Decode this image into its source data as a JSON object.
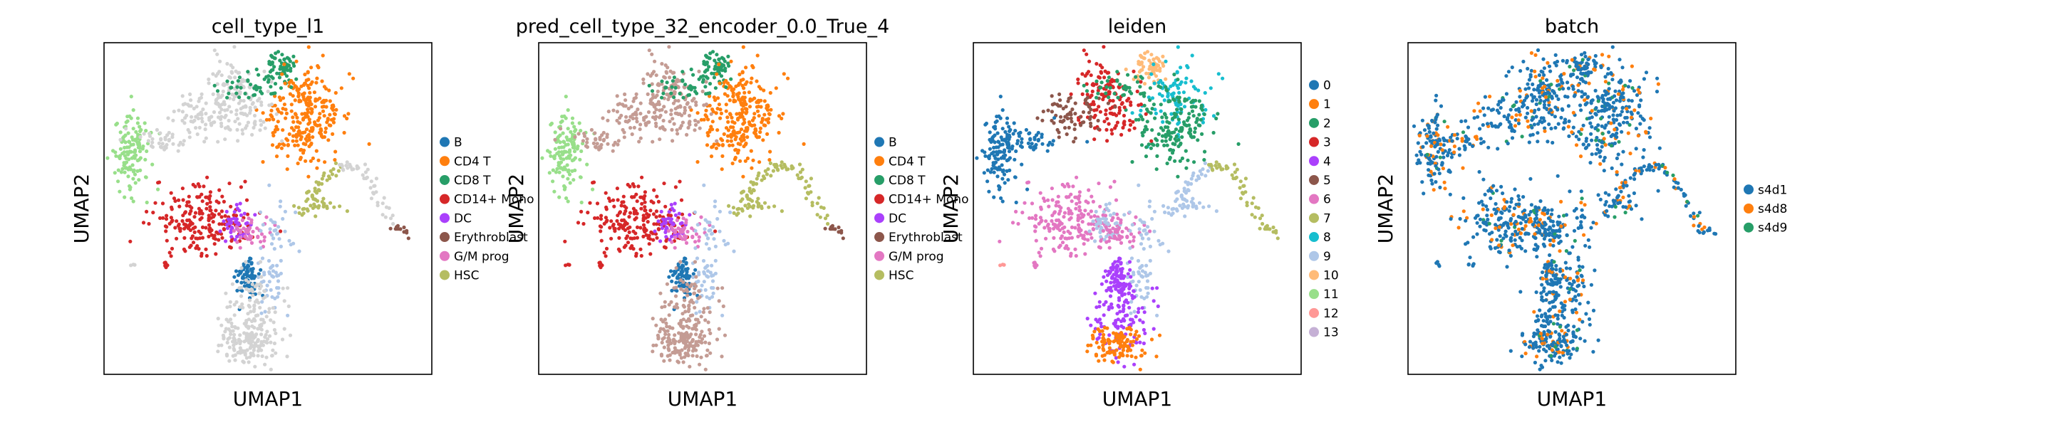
{
  "chart_data": [
    {
      "type": "scatter",
      "title": "cell_type_l1",
      "xlabel": "UMAP1",
      "ylabel": "UMAP2",
      "grid": false,
      "legend_position": "right",
      "unassigned_color": "#d3d3d3",
      "series": [
        {
          "name": "B",
          "color": "#1f77b4"
        },
        {
          "name": "CD4 T",
          "color": "#ff7f0e"
        },
        {
          "name": "CD8 T",
          "color": "#279e68"
        },
        {
          "name": "CD14+ Mono",
          "color": "#d62728"
        },
        {
          "name": "DC",
          "color": "#aa40fc"
        },
        {
          "name": "Erythroblast",
          "color": "#8c564b"
        },
        {
          "name": "G/M prog",
          "color": "#e377c2"
        },
        {
          "name": "HSC",
          "color": "#b5bd61"
        }
      ]
    },
    {
      "type": "scatter",
      "title": "pred_cell_type_32_encoder_0.0_True_4",
      "xlabel": "UMAP1",
      "ylabel": "UMAP2",
      "grid": false,
      "legend_position": "right",
      "series": [
        {
          "name": "B",
          "color": "#1f77b4"
        },
        {
          "name": "CD4 T",
          "color": "#ff7f0e"
        },
        {
          "name": "CD8 T",
          "color": "#279e68"
        },
        {
          "name": "CD14+ Mono",
          "color": "#d62728"
        },
        {
          "name": "DC",
          "color": "#aa40fc"
        },
        {
          "name": "Erythroblast",
          "color": "#8c564b"
        },
        {
          "name": "G/M prog",
          "color": "#e377c2"
        },
        {
          "name": "HSC",
          "color": "#b5bd61"
        }
      ],
      "extra_colors": [
        "#c49c94",
        "#aec7e8",
        "#98df8a"
      ]
    },
    {
      "type": "scatter",
      "title": "leiden",
      "xlabel": "UMAP1",
      "ylabel": "UMAP2",
      "grid": false,
      "legend_position": "right",
      "series": [
        {
          "name": "0",
          "color": "#1f77b4"
        },
        {
          "name": "1",
          "color": "#ff7f0e"
        },
        {
          "name": "2",
          "color": "#279e68"
        },
        {
          "name": "3",
          "color": "#d62728"
        },
        {
          "name": "4",
          "color": "#aa40fc"
        },
        {
          "name": "5",
          "color": "#8c564b"
        },
        {
          "name": "6",
          "color": "#e377c2"
        },
        {
          "name": "7",
          "color": "#b5bd61"
        },
        {
          "name": "8",
          "color": "#17becf"
        },
        {
          "name": "9",
          "color": "#aec7e8"
        },
        {
          "name": "10",
          "color": "#ffbb78"
        },
        {
          "name": "11",
          "color": "#98df8a"
        },
        {
          "name": "12",
          "color": "#ff9896"
        },
        {
          "name": "13",
          "color": "#c5b0d5"
        }
      ]
    },
    {
      "type": "scatter",
      "title": "batch",
      "xlabel": "UMAP1",
      "ylabel": "UMAP2",
      "grid": false,
      "legend_position": "right",
      "series": [
        {
          "name": "s4d1",
          "color": "#1f77b4"
        },
        {
          "name": "s4d8",
          "color": "#ff7f0e"
        },
        {
          "name": "s4d9",
          "color": "#279e68"
        }
      ]
    }
  ]
}
